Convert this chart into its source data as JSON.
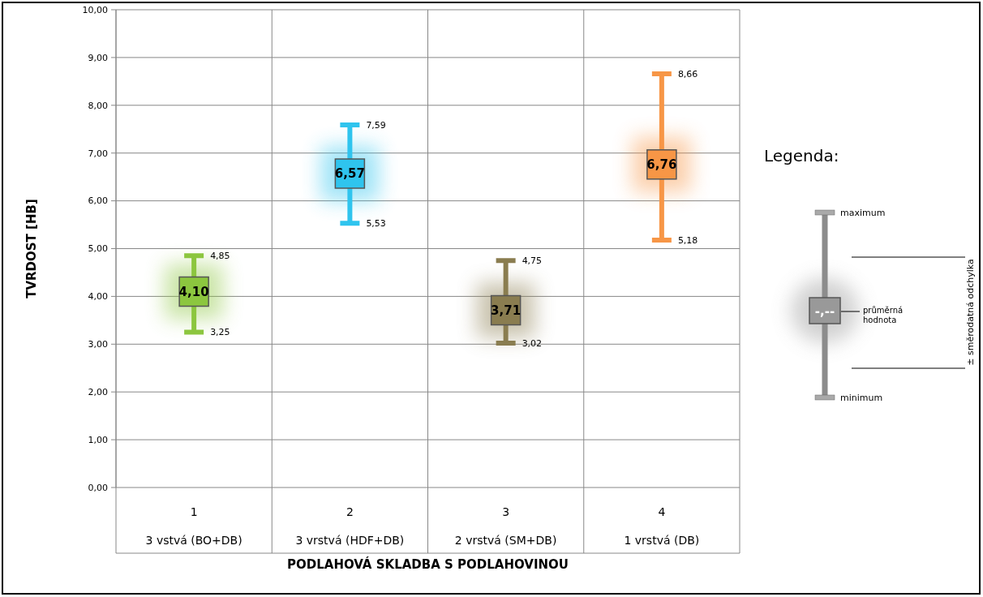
{
  "chart_data": {
    "type": "scatter",
    "ylabel": "TVRDOST [HB]",
    "categories": [
      "1\n3 vstvá (BO+DB)",
      "2\n3 vrstvá (HDF+DB)",
      "3\n2 vrstvá (SM+DB)",
      "4\n1 vrstvá (DB)"
    ],
    "values": [
      4.1,
      6.57,
      3.71,
      6.76
    ],
    "value_labels": [
      "4,10",
      "6,57",
      "3,71",
      "6,76"
    ],
    "errors": [
      [
        3.25,
        4.85
      ],
      [
        5.53,
        7.59
      ],
      [
        3.02,
        4.75
      ],
      [
        5.18,
        8.66
      ]
    ],
    "colors": [
      "#8cc63f",
      "#2fc4ee",
      "#8a7d50",
      "#f79646"
    ],
    "marker": "square",
    "grid": true,
    "ylim": [
      0,
      10
    ],
    "yticks": [
      {
        "value": 0,
        "label": "0,00"
      },
      {
        "value": 1,
        "label": "1,00"
      },
      {
        "value": 2,
        "label": "2,00"
      },
      {
        "value": 3,
        "label": "3,00"
      },
      {
        "value": 4,
        "label": "4,00"
      },
      {
        "value": 5,
        "label": "5,00"
      },
      {
        "value": 6,
        "label": "6,00"
      },
      {
        "value": 7,
        "label": "7,00"
      },
      {
        "value": 8,
        "label": "8,00"
      },
      {
        "value": 9,
        "label": "9,00"
      },
      {
        "value": 10,
        "label": "10,00"
      }
    ],
    "annotations": [
      "Legenda:",
      "maximum",
      "± směrodatná odchylka",
      "-,--",
      "průměrná\nhodnota",
      "minimum",
      "PODLAHOVÁ SKLADBA S PODLAHOVINOU",
      {
        "text": "4,85",
        "x": "1\n3 vstvá (BO+DB)",
        "y": 4.85
      },
      {
        "text": "3,25",
        "x": "1\n3 vstvá (BO+DB)",
        "y": 3.25
      },
      {
        "text": "7,59",
        "x": "2\n3 vrstvá (HDF+DB)",
        "y": 7.59
      },
      {
        "text": "5,53",
        "x": "2\n3 vrstvá (HDF+DB)",
        "y": 5.53
      },
      {
        "text": "4,75",
        "x": "3\n2 vrstvá (SM+DB)",
        "y": 4.75
      },
      {
        "text": "3,02",
        "x": "3\n2 vrstvá (SM+DB)",
        "y": 3.02
      },
      {
        "text": "8,66",
        "x": "4\n1 vrstvá (DB)",
        "y": 8.66
      },
      {
        "text": "5,18",
        "x": "4\n1 vrstvá (DB)",
        "y": 5.18
      }
    ]
  }
}
